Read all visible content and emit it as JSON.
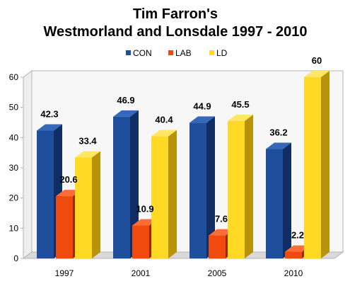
{
  "chart_data": {
    "type": "bar",
    "title_line1": "Tim Farron's",
    "title_line2": "Westmorland and Lonsdale 1997 - 2010",
    "xlabel": "",
    "ylabel": "",
    "categories": [
      "1997",
      "2001",
      "2005",
      "2010"
    ],
    "series": [
      {
        "name": "CON",
        "values": [
          42.3,
          46.9,
          44.9,
          36.2
        ],
        "labels": [
          "42.3",
          "46.9",
          "44.9",
          "36.2"
        ],
        "color": "#1f4e9c",
        "side_color": "#102e63",
        "top_color": "#3568b8"
      },
      {
        "name": "LAB",
        "values": [
          20.6,
          10.9,
          7.6,
          2.2
        ],
        "labels": [
          "20.6",
          "10.9",
          "7.6",
          "2.2"
        ],
        "color": "#f04a0f",
        "side_color": "#9a2a05",
        "top_color": "#ff6d36"
      },
      {
        "name": "LD",
        "values": [
          33.4,
          40.4,
          45.5,
          60
        ],
        "labels": [
          "33.4",
          "40.4",
          "45.5",
          "60"
        ],
        "color": "#ffd923",
        "side_color": "#b8930a",
        "top_color": "#ffe766"
      }
    ],
    "ylim": [
      0,
      60
    ],
    "yticks": [
      "0",
      "10",
      "20",
      "30",
      "40",
      "50",
      "60"
    ],
    "grid": false,
    "legend_position": "top"
  }
}
